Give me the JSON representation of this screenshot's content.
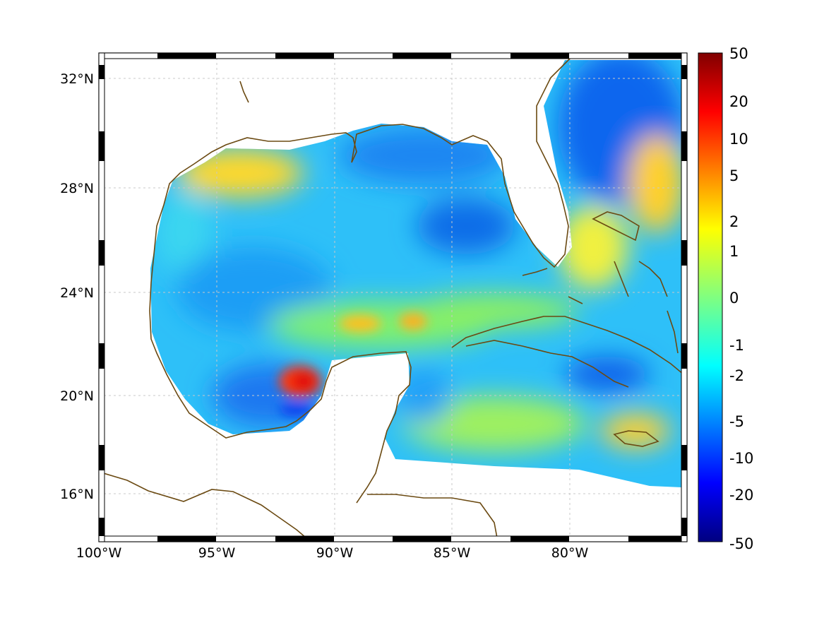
{
  "chart_data": {
    "type": "heatmap",
    "title": "",
    "x_ticks": [
      "100°W",
      "95°W",
      "90°W",
      "85°W",
      "80°W"
    ],
    "y_ticks": [
      "32°N",
      "28°N",
      "24°N",
      "20°N",
      "16°N"
    ],
    "lon_range": [
      -100,
      -75
    ],
    "lat_range": [
      14.5,
      33
    ],
    "colorbar": {
      "ticks": [
        "50",
        "20",
        "10",
        "5",
        "2",
        "1",
        "0",
        "-1",
        "-2",
        "-5",
        "-10",
        "-20",
        "-50"
      ],
      "range": [
        -50,
        50
      ],
      "colormap": "jet"
    },
    "features": [
      {
        "label": "Bay of Campeche maximum",
        "lon": -91.5,
        "lat": 20.5,
        "value": 20
      },
      {
        "label": "Yucatan Channel maxima",
        "lon": -88.5,
        "lat": 22.8,
        "value": 3
      },
      {
        "label": "Gulf Stream band",
        "lon": -77,
        "lat": 27.5,
        "value": 3
      },
      {
        "label": "Atlantic minimum",
        "lon": -79,
        "lat": 30.5,
        "value": -8
      },
      {
        "label": "Cuba south minimum",
        "lon": -79,
        "lat": 20.8,
        "value": -6
      },
      {
        "label": "Jamaica maximum",
        "lon": -77,
        "lat": 18.3,
        "value": 4
      },
      {
        "label": "Northern Gulf shelf",
        "lon": -95,
        "lat": 28.8,
        "value": 2
      }
    ]
  },
  "colors": {
    "coastline": "#6b4a12",
    "land": "#ffffff"
  }
}
